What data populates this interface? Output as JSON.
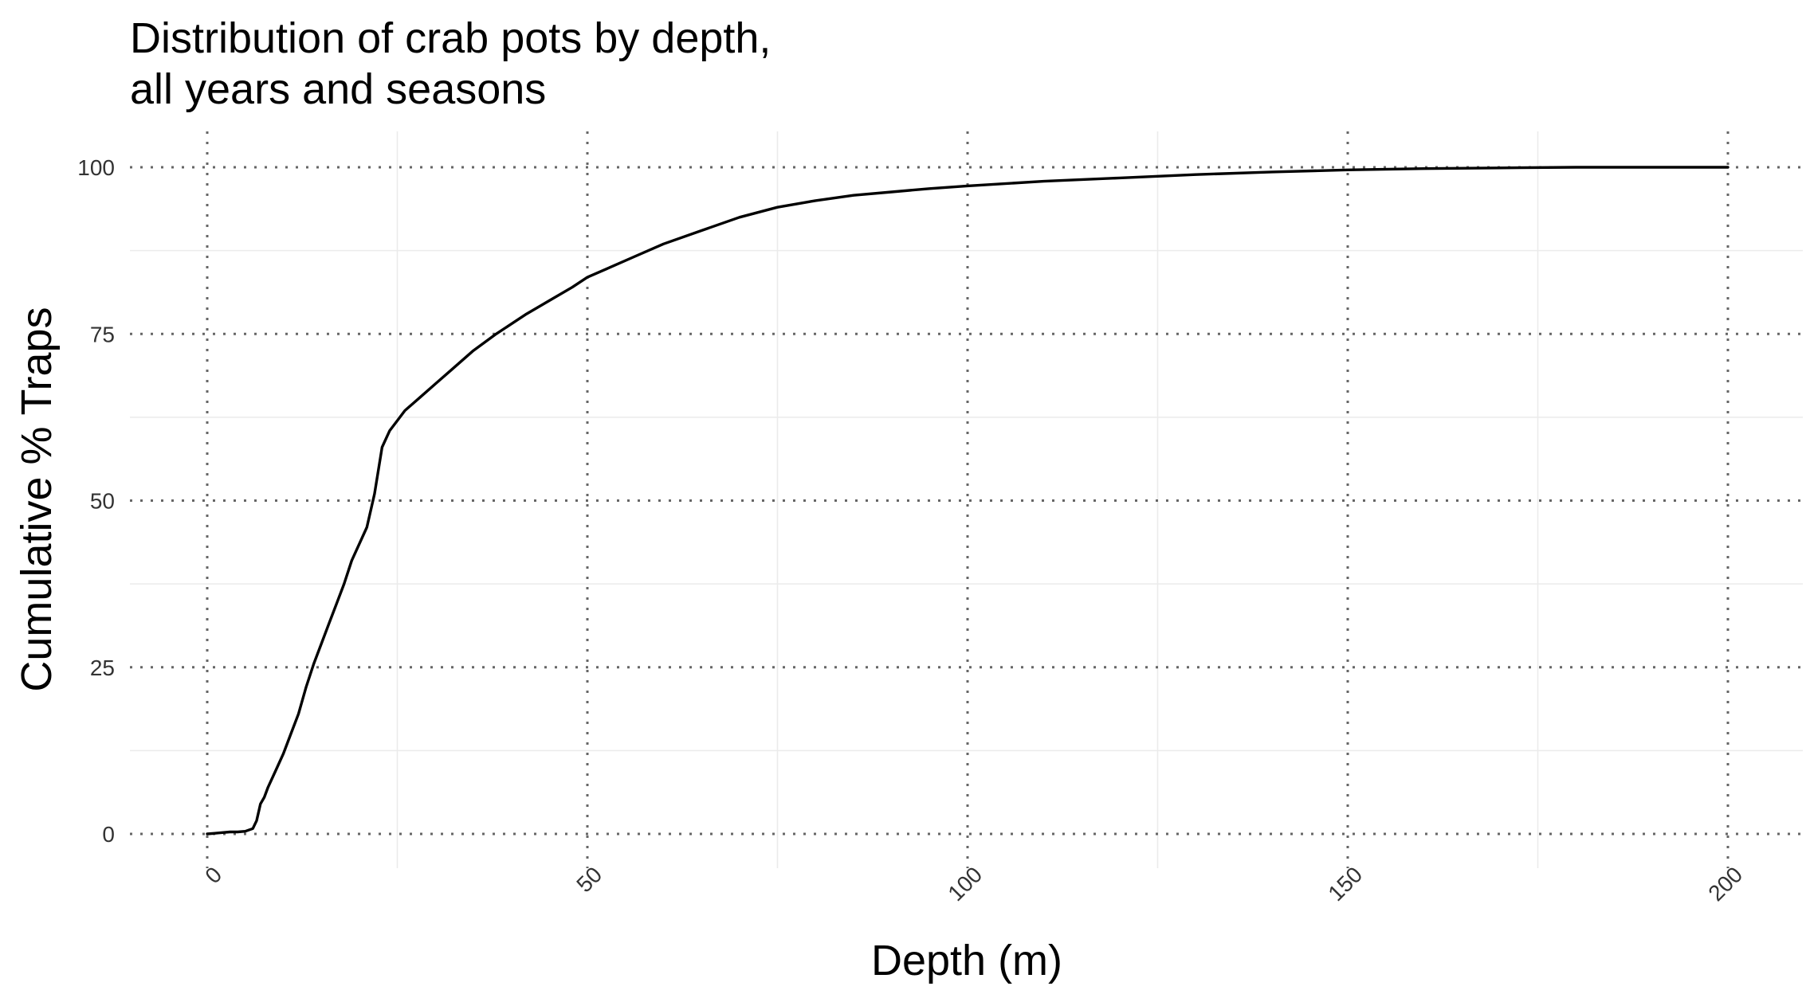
{
  "chart_data": {
    "type": "line",
    "title": "Distribution of crab pots by depth,\nall years and seasons",
    "title_lines": [
      "Distribution of crab pots by depth,",
      "all years and seasons"
    ],
    "xlabel": "Depth (m)",
    "ylabel": "Cumulative % Traps",
    "xlim": [
      0,
      200
    ],
    "ylim": [
      0,
      100
    ],
    "x_ticks": [
      0,
      50,
      100,
      150,
      200
    ],
    "x_tick_labels": [
      "0",
      "50",
      "100",
      "150",
      "200"
    ],
    "y_ticks": [
      0,
      25,
      50,
      75,
      100
    ],
    "y_tick_labels": [
      "0",
      "25",
      "50",
      "75",
      "100"
    ],
    "x_minor_ticks": [
      25,
      75,
      125,
      175
    ],
    "y_minor_ticks": [
      12.5,
      37.5,
      62.5,
      87.5
    ],
    "grid": true,
    "legend": "none",
    "line_color": "#000000",
    "series": [
      {
        "x": [
          0,
          1,
          2,
          3,
          4,
          5,
          6,
          6.5,
          7,
          7.5,
          8,
          9,
          10,
          11,
          12,
          13,
          14,
          15,
          16,
          17,
          18,
          19,
          20,
          21,
          22,
          23,
          24,
          25,
          26,
          27,
          28,
          30,
          32,
          35,
          38,
          40,
          42,
          45,
          48,
          50,
          53,
          56,
          60,
          65,
          70,
          75,
          80,
          85,
          90,
          95,
          100,
          110,
          120,
          130,
          140,
          150,
          160,
          170,
          180,
          190,
          200
        ],
        "y": [
          0,
          0.1,
          0.2,
          0.3,
          0.3,
          0.4,
          0.8,
          2,
          4.5,
          5.5,
          7,
          9.5,
          12,
          15,
          18,
          22,
          25.5,
          28.5,
          31.5,
          34.5,
          37.5,
          41,
          43.5,
          46,
          51,
          58,
          60.5,
          62,
          63.5,
          64.5,
          65.5,
          67.5,
          69.5,
          72.5,
          75,
          76.5,
          78,
          80,
          82,
          83.5,
          85,
          86.5,
          88.5,
          90.5,
          92.5,
          94,
          95,
          95.8,
          96.3,
          96.8,
          97.2,
          97.9,
          98.4,
          98.9,
          99.3,
          99.6,
          99.8,
          99.9,
          100,
          100,
          100
        ]
      }
    ]
  }
}
